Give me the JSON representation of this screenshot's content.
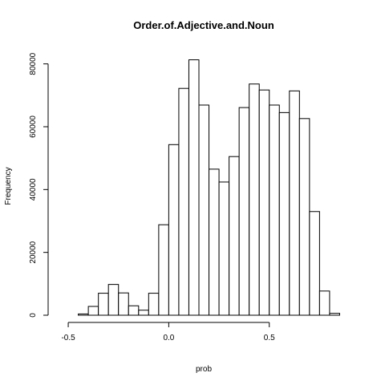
{
  "chart_data": {
    "type": "bar",
    "title": "Order.of.Adjective.and.Noun",
    "xlabel": "prob",
    "ylabel": "Frequency",
    "bin_width": 0.05,
    "bins": [
      {
        "x0": -0.45,
        "x1": -0.4,
        "value": 400
      },
      {
        "x0": -0.4,
        "x1": -0.35,
        "value": 2800
      },
      {
        "x0": -0.35,
        "x1": -0.3,
        "value": 7000
      },
      {
        "x0": -0.3,
        "x1": -0.25,
        "value": 9800
      },
      {
        "x0": -0.25,
        "x1": -0.2,
        "value": 7100
      },
      {
        "x0": -0.2,
        "x1": -0.15,
        "value": 3000
      },
      {
        "x0": -0.15,
        "x1": -0.1,
        "value": 1600
      },
      {
        "x0": -0.1,
        "x1": -0.05,
        "value": 7000
      },
      {
        "x0": -0.05,
        "x1": 0.0,
        "value": 28800
      },
      {
        "x0": 0.0,
        "x1": 0.05,
        "value": 54300
      },
      {
        "x0": 0.05,
        "x1": 0.1,
        "value": 72200
      },
      {
        "x0": 0.1,
        "x1": 0.15,
        "value": 81300
      },
      {
        "x0": 0.15,
        "x1": 0.2,
        "value": 66900
      },
      {
        "x0": 0.2,
        "x1": 0.25,
        "value": 46500
      },
      {
        "x0": 0.25,
        "x1": 0.3,
        "value": 42400
      },
      {
        "x0": 0.3,
        "x1": 0.35,
        "value": 50500
      },
      {
        "x0": 0.35,
        "x1": 0.4,
        "value": 66100
      },
      {
        "x0": 0.4,
        "x1": 0.45,
        "value": 73600
      },
      {
        "x0": 0.45,
        "x1": 0.5,
        "value": 71700
      },
      {
        "x0": 0.5,
        "x1": 0.55,
        "value": 66900
      },
      {
        "x0": 0.55,
        "x1": 0.6,
        "value": 64500
      },
      {
        "x0": 0.6,
        "x1": 0.65,
        "value": 71400
      },
      {
        "x0": 0.65,
        "x1": 0.7,
        "value": 62600
      },
      {
        "x0": 0.7,
        "x1": 0.75,
        "value": 33000
      },
      {
        "x0": 0.75,
        "x1": 0.8,
        "value": 7700
      },
      {
        "x0": 0.8,
        "x1": 0.85,
        "value": 600
      }
    ],
    "xlim": [
      -0.6,
      0.9
    ],
    "ylim": [
      0,
      84000
    ],
    "x_ticks": [
      {
        "value": -0.5,
        "label": "-0.5"
      },
      {
        "value": 0.0,
        "label": "0.0"
      },
      {
        "value": 0.5,
        "label": "0.5"
      }
    ],
    "y_ticks": [
      {
        "value": 0,
        "label": "0"
      },
      {
        "value": 20000,
        "label": "20000"
      },
      {
        "value": 40000,
        "label": "40000"
      },
      {
        "value": 60000,
        "label": "60000"
      },
      {
        "value": 80000,
        "label": "80000"
      }
    ],
    "grid": false,
    "bar_fill": "#ffffff",
    "bar_stroke": "#000000"
  }
}
